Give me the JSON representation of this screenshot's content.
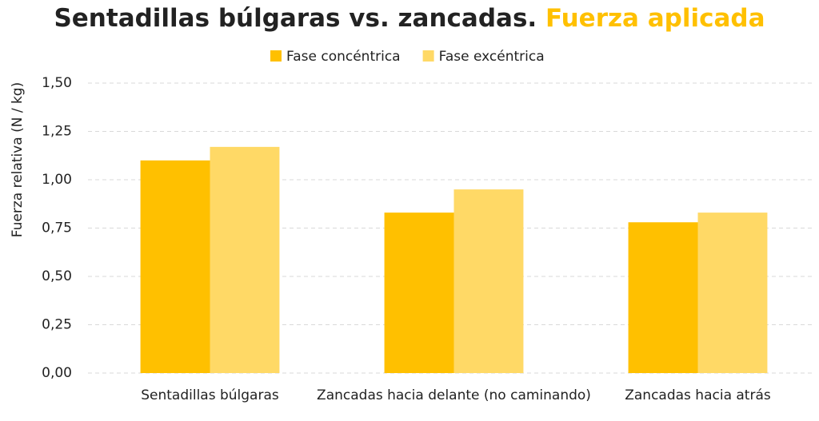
{
  "chart_data": {
    "type": "bar",
    "title": "Sentadillas búlgaras vs. zancadas.",
    "title_highlight": "Fuerza aplicada",
    "y_label": "Fuerza relativa (N / kg)",
    "categories": [
      "Sentadillas búlgaras",
      "Zancadas hacia delante (no caminando)",
      "Zancadas hacia atrás"
    ],
    "series": [
      {
        "name": "Fase concéntrica",
        "color": "#ffc000",
        "values": [
          1.1,
          0.83,
          0.78
        ]
      },
      {
        "name": "Fase excéntrica",
        "color": "#ffd966",
        "values": [
          1.17,
          0.95,
          0.83
        ]
      }
    ],
    "ylim": [
      0,
      1.5
    ],
    "yticks": [
      {
        "value": 0,
        "label": "0,00"
      },
      {
        "value": 0.25,
        "label": "0,25"
      },
      {
        "value": 0.5,
        "label": "0,50"
      },
      {
        "value": 0.75,
        "label": "0,75"
      },
      {
        "value": 1,
        "label": "1,00"
      },
      {
        "value": 1.25,
        "label": "1,25"
      },
      {
        "value": 1.5,
        "label": "1,50"
      }
    ],
    "grid": true,
    "highlight_color": "#ffc000"
  }
}
